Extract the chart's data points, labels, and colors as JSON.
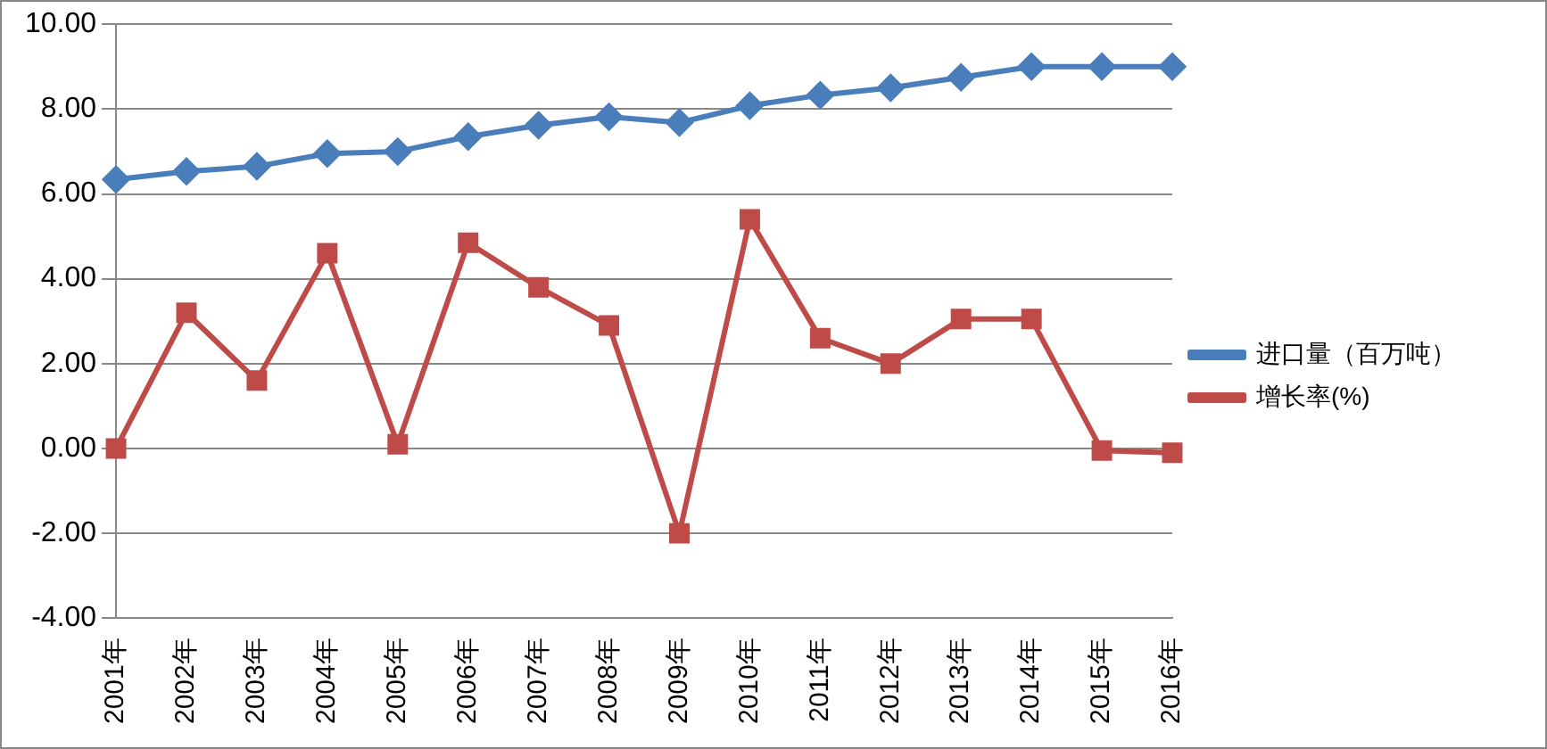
{
  "chart_data": {
    "type": "line",
    "categories": [
      "2001年",
      "2002年",
      "2003年",
      "2004年",
      "2005年",
      "2006年",
      "2007年",
      "2008年",
      "2009年",
      "2010年",
      "2011年",
      "2012年",
      "2013年",
      "2014年",
      "2015年",
      "2016年"
    ],
    "series": [
      {
        "name": "进口量（百万吨）",
        "color": "#4a7ebb",
        "marker": "diamond",
        "values": [
          6.34,
          6.53,
          6.65,
          6.95,
          7.0,
          7.35,
          7.62,
          7.82,
          7.68,
          8.08,
          8.33,
          8.5,
          8.75,
          9.0,
          9.0,
          9.0
        ]
      },
      {
        "name": "增长率(%)",
        "color": "#be4b48",
        "marker": "square",
        "values": [
          0.0,
          3.2,
          1.6,
          4.6,
          0.1,
          4.85,
          3.8,
          2.9,
          -2.0,
          5.4,
          2.6,
          2.0,
          3.05,
          3.05,
          -0.05,
          -0.1
        ]
      }
    ],
    "ylim": [
      -4,
      10
    ],
    "yticks": [
      {
        "value": -4,
        "label": "-4.00"
      },
      {
        "value": -2,
        "label": "-2.00"
      },
      {
        "value": 0,
        "label": "0.00"
      },
      {
        "value": 2,
        "label": "2.00"
      },
      {
        "value": 4,
        "label": "4.00"
      },
      {
        "value": 6,
        "label": "6.00"
      },
      {
        "value": 8,
        "label": "8.00"
      },
      {
        "value": 10,
        "label": "10.00"
      }
    ],
    "grid": "y",
    "legend": "right"
  }
}
